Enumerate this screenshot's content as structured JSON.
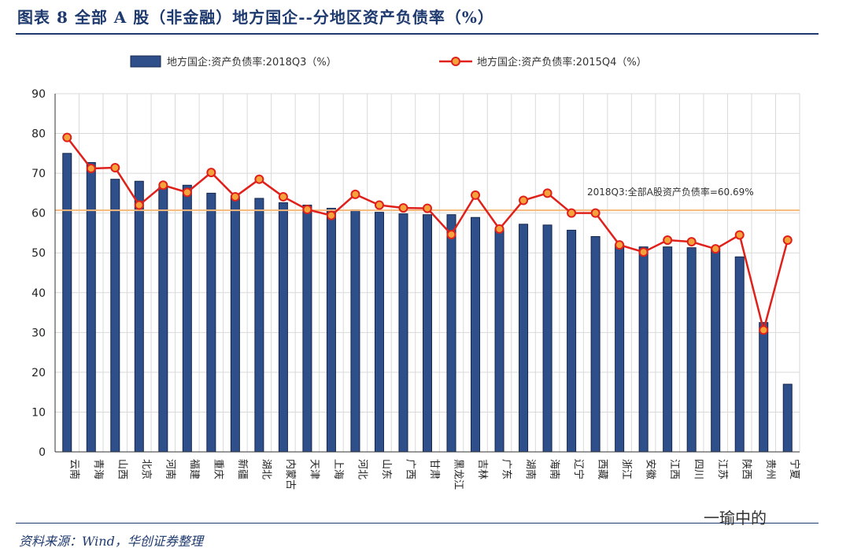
{
  "figure_title": "图表 8 全部 A 股（非金融）地方国企--分地区资产负债率（%）",
  "source_note": "资料来源：Wind，华创证券整理",
  "watermark": "一瑜中的",
  "colors": {
    "bar_fill": "#2f4f8a",
    "bar_stroke": "#14264d",
    "line": "#e0201b",
    "marker_fill": "#f3a23c",
    "reference_line": "#f5b97a",
    "title": "#1f3a6e",
    "grid": "#d9d9d9"
  },
  "chart_data": {
    "type": "bar",
    "categories": [
      "云南",
      "青海",
      "山西",
      "北京",
      "河南",
      "福建",
      "重庆",
      "新疆",
      "湖北",
      "内蒙古",
      "天津",
      "上海",
      "河北",
      "山东",
      "广西",
      "甘肃",
      "黑龙江",
      "吉林",
      "广东",
      "湖南",
      "海南",
      "辽宁",
      "西藏",
      "浙江",
      "安徽",
      "江西",
      "四川",
      "江苏",
      "陕西",
      "贵州",
      "宁夏"
    ],
    "series": [
      {
        "name": "地方国企:资产负债率:2018Q3（%）",
        "type": "bar",
        "values": [
          75,
          72.7,
          68.5,
          68,
          66.5,
          67,
          65,
          63.9,
          63.7,
          62.6,
          62,
          61.2,
          60.8,
          60.2,
          59.8,
          59.6,
          59.6,
          58.9,
          56,
          57.2,
          57,
          55.7,
          54.1,
          52,
          51.5,
          51.5,
          51.3,
          51,
          49,
          32.5,
          17
        ]
      },
      {
        "name": "地方国企:资产负债率:2015Q4（%）",
        "type": "line",
        "values": [
          79,
          71.2,
          71.4,
          62,
          67,
          65.2,
          70.2,
          64.1,
          68.5,
          64.1,
          60.9,
          59.4,
          64.7,
          62,
          61.3,
          61.2,
          54.6,
          64.5,
          56,
          63.2,
          65,
          60,
          60,
          52,
          50.2,
          53.2,
          52.8,
          51,
          54.5,
          30.6,
          53.2
        ]
      }
    ],
    "reference_line": {
      "value": 60.69,
      "label": "2018Q3:全部A股资产负债率=60.69%"
    },
    "ylim": [
      0,
      90
    ],
    "yticks": [
      0,
      10,
      20,
      30,
      40,
      50,
      60,
      70,
      80,
      90
    ],
    "xlabel": "",
    "ylabel": "",
    "grid": true,
    "legend_position": "top-center"
  }
}
